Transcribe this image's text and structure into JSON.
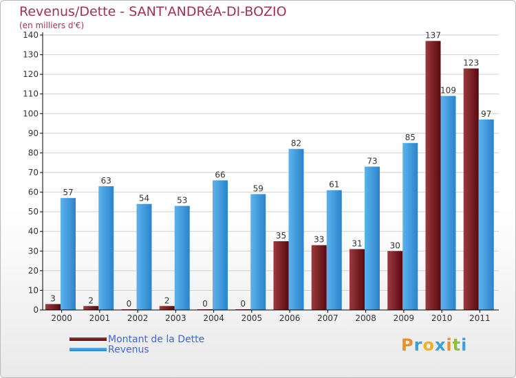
{
  "title": "Revenus/Dette - SANT'ANDRéA-DI-BOZIO",
  "subtitle": "(en milliers d'€)",
  "logo": "Proxiti",
  "colors": {
    "debt_dark": "#5a0a0e",
    "debt_light": "#9b3a3e",
    "revenue_dark": "#2a84cc",
    "revenue_light": "#5db2ec",
    "axis": "#000000",
    "grid": "#cfcfcf",
    "label": "#333333"
  },
  "legend": [
    {
      "label": "Montant de la Dette",
      "series": "debt"
    },
    {
      "label": "Revenus",
      "series": "revenue"
    }
  ],
  "chart_data": {
    "type": "bar",
    "title": "Revenus/Dette - SANT'ANDRéA-DI-BOZIO",
    "ylabel": "(en milliers d'€)",
    "xlabel": "",
    "ylim": [
      0,
      140
    ],
    "yticks": [
      0,
      10,
      20,
      30,
      40,
      50,
      60,
      70,
      80,
      90,
      100,
      110,
      120,
      130,
      140
    ],
    "categories": [
      "2000",
      "2001",
      "2002",
      "2003",
      "2004",
      "2005",
      "2006",
      "2007",
      "2008",
      "2009",
      "2010",
      "2011"
    ],
    "series": [
      {
        "name": "Montant de la Dette",
        "key": "debt",
        "values": [
          3,
          2,
          0,
          2,
          0,
          0,
          35,
          33,
          31,
          30,
          137,
          123
        ]
      },
      {
        "name": "Revenus",
        "key": "revenue",
        "values": [
          57,
          63,
          54,
          53,
          66,
          59,
          82,
          61,
          73,
          85,
          109,
          97
        ]
      }
    ],
    "legend_position": "bottom-left"
  }
}
